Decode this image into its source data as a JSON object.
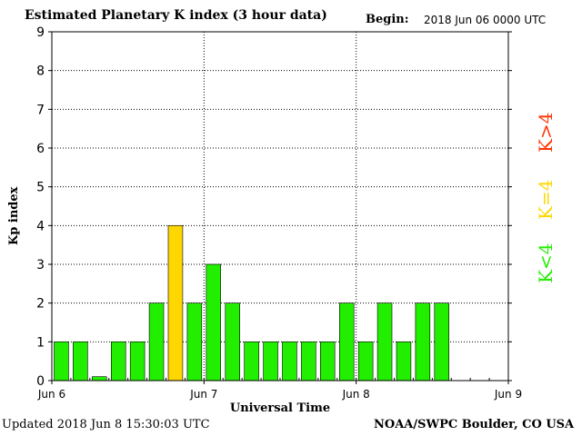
{
  "header": {
    "title": "Estimated Planetary K index (3 hour data)",
    "begin_label": "Begin:",
    "begin_value": "2018 Jun 06 0000 UTC"
  },
  "footer": {
    "updated": "Updated 2018 Jun  8 15:30:03 UTC",
    "source": "NOAA/SWPC Boulder, CO USA"
  },
  "legend": [
    {
      "label": "K>4",
      "color": "#ff3300"
    },
    {
      "label": "K=4",
      "color": "#ffd700"
    },
    {
      "label": "K<4",
      "color": "#22ee00"
    }
  ],
  "chart_data": {
    "type": "bar",
    "title": "Estimated Planetary K index (3 hour data)",
    "xlabel": "Universal Time",
    "ylabel": "Kp index",
    "ylim": [
      0,
      9
    ],
    "yticks": [
      "0",
      "1",
      "2",
      "3",
      "4",
      "5",
      "6",
      "7",
      "8",
      "9"
    ],
    "xticks": [
      "Jun 6",
      "Jun 7",
      "Jun 8",
      "Jun 9"
    ],
    "interval_hours": 3,
    "grid": true,
    "colors": {
      "below4": "#22ee00",
      "equal4": "#ffd700",
      "above4": "#ff3300"
    },
    "values": [
      1,
      1,
      0.1,
      1,
      1,
      2,
      4,
      2,
      3,
      2,
      1,
      1,
      1,
      1,
      1,
      2,
      1,
      2,
      1,
      2,
      2
    ]
  }
}
